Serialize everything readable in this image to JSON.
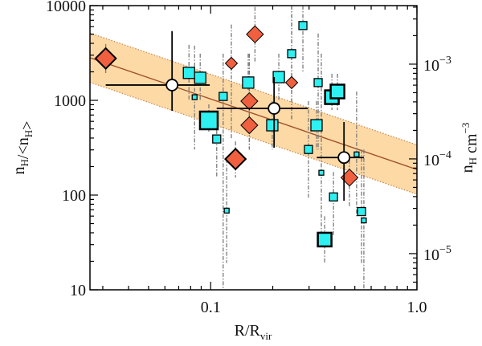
{
  "chart_data": {
    "type": "scatter",
    "xscale": "log",
    "yscale": "log",
    "xlim": [
      0.026,
      1.0
    ],
    "ylim": [
      10,
      10000
    ],
    "grid": false,
    "xlabel_parts": [
      {
        "t": "R/R"
      },
      {
        "t": "vir",
        "sub": true
      }
    ],
    "ylabel_parts": [
      {
        "t": "n"
      },
      {
        "t": "H",
        "sub": true
      },
      {
        "t": "/<n"
      },
      {
        "t": "H",
        "sub": true
      },
      {
        "t": ">"
      }
    ],
    "y2label_parts": [
      {
        "t": "n"
      },
      {
        "t": "H",
        "sub": true
      },
      {
        "t": " cm"
      },
      {
        "t": "−3",
        "sup": true
      }
    ],
    "xticks": [
      {
        "v": 0.1,
        "label": "0.1"
      },
      {
        "v": 1.0,
        "label": "1.0"
      }
    ],
    "yticks": [
      {
        "v": 10,
        "label": "10"
      },
      {
        "v": 100,
        "label": "100"
      },
      {
        "v": 1000,
        "label": "1000"
      },
      {
        "v": 10000,
        "label": "10000"
      }
    ],
    "y2_scale_nH_per_ratio": 4.15e-07,
    "y2ticks": [
      {
        "v": 1e-05,
        "base": "10",
        "exp": "−5"
      },
      {
        "v": 0.0001,
        "base": "10",
        "exp": "−4"
      },
      {
        "v": 0.001,
        "base": "10",
        "exp": "−3"
      }
    ],
    "fit": {
      "slope": -0.745,
      "value_at_x1": 186,
      "band_dex": 0.26,
      "line_color": "#a0522d",
      "band_color": "#fdd9a6",
      "band_edge_color": "#c8864a"
    },
    "colors": {
      "diamond": "#f0603f",
      "square": "#2ef0f0",
      "errorbar": "#7a7a7a"
    },
    "binned_means": [
      {
        "x": 0.065,
        "y": 1450,
        "xlo": 0.031,
        "xhi": 0.099,
        "ylo": 775,
        "yhi": 5380
      },
      {
        "x": 0.203,
        "y": 822,
        "xlo": 0.107,
        "xhi": 0.296,
        "ylo": 316,
        "yhi": 1760
      },
      {
        "x": 0.443,
        "y": 249,
        "xlo": 0.327,
        "xhi": 0.553,
        "ylo": 87,
        "yhi": 590
      }
    ],
    "diamonds": [
      {
        "x": 0.031,
        "y": 2770,
        "ylo": 1940,
        "yhi": 3930,
        "size": 4
      },
      {
        "x": 0.126,
        "y": 2460,
        "ylo": 398,
        "yhi": 6300,
        "size": 2
      },
      {
        "x": 0.164,
        "y": 4980,
        "ylo": 2460,
        "yhi": 9680,
        "size": 3
      },
      {
        "x": 0.154,
        "y": 980,
        "ylo": 303,
        "yhi": 3110,
        "size": 3
      },
      {
        "x": 0.154,
        "y": 546,
        "ylo": 303,
        "yhi": 3110,
        "size": 3
      },
      {
        "x": 0.132,
        "y": 240,
        "ylo": 153,
        "yhi": 369,
        "size": 4
      },
      {
        "x": 0.247,
        "y": 1540,
        "ylo": 625,
        "yhi": 10000,
        "size": 2
      },
      {
        "x": 0.471,
        "y": 153,
        "ylo": 75.5,
        "yhi": 235,
        "size": 3
      }
    ],
    "squares": [
      {
        "x": 0.0785,
        "y": 1950,
        "ylo": 981,
        "yhi": 3850,
        "size": 3
      },
      {
        "x": 0.089,
        "y": 1730,
        "ylo": 981,
        "yhi": 3110,
        "size": 3
      },
      {
        "x": 0.0836,
        "y": 1080,
        "ylo": 303,
        "yhi": 3780,
        "size": 1
      },
      {
        "x": 0.098,
        "y": 614,
        "ylo": 467,
        "yhi": 907,
        "size": 5
      },
      {
        "x": 0.115,
        "y": 1100,
        "ylo": 10,
        "yhi": 3110,
        "size": 2
      },
      {
        "x": 0.107,
        "y": 391,
        "ylo": 153,
        "yhi": 485,
        "size": 2
      },
      {
        "x": 0.1196,
        "y": 68.5,
        "ylo": 19.2,
        "yhi": 240,
        "size": 1
      },
      {
        "x": 0.152,
        "y": 1540,
        "ylo": 1290,
        "yhi": 3110,
        "size": 3
      },
      {
        "x": 0.214,
        "y": 1760,
        "ylo": 1000,
        "yhi": 3110,
        "size": 3
      },
      {
        "x": 0.199,
        "y": 546,
        "ylo": 303,
        "yhi": 981,
        "size": 3
      },
      {
        "x": 0.247,
        "y": 3110,
        "ylo": 625,
        "yhi": 10000,
        "size": 2
      },
      {
        "x": 0.28,
        "y": 6160,
        "ylo": 1940,
        "yhi": 10000,
        "size": 2
      },
      {
        "x": 0.332,
        "y": 1540,
        "ylo": 303,
        "yhi": 5070,
        "size": 2
      },
      {
        "x": 0.326,
        "y": 546,
        "ylo": 303,
        "yhi": 981,
        "size": 3
      },
      {
        "x": 0.298,
        "y": 303,
        "ylo": 94,
        "yhi": 981,
        "size": 2
      },
      {
        "x": 0.344,
        "y": 172,
        "ylo": 40.5,
        "yhi": 3110,
        "size": 1
      },
      {
        "x": 0.357,
        "y": 33.9,
        "ylo": 19.2,
        "yhi": 59.8,
        "size": 4
      },
      {
        "x": 0.394,
        "y": 95.6,
        "ylo": 38,
        "yhi": 175,
        "size": 2
      },
      {
        "x": 0.387,
        "y": 1080,
        "ylo": 790,
        "yhi": 1910,
        "size": 4
      },
      {
        "x": 0.412,
        "y": 1240,
        "ylo": 790,
        "yhi": 1910,
        "size": 4
      },
      {
        "x": 0.51,
        "y": 269,
        "ylo": 59.8,
        "yhi": 1240,
        "size": 1
      },
      {
        "x": 0.539,
        "y": 67,
        "ylo": 19.2,
        "yhi": 303,
        "size": 2
      },
      {
        "x": 0.553,
        "y": 54,
        "ylo": 10,
        "yhi": 303,
        "size": 1
      }
    ]
  }
}
